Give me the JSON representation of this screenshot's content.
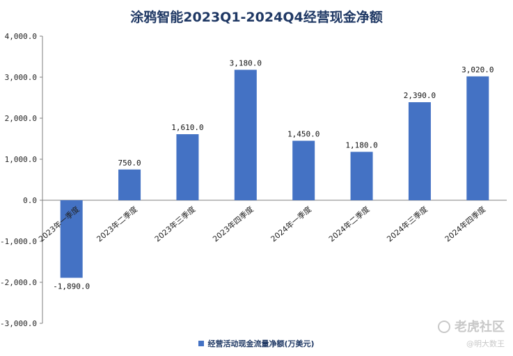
{
  "chart_data": {
    "type": "bar",
    "title": "涂鸦智能2023Q1-2024Q4经营现金净额",
    "categories": [
      "2023年一季度",
      "2023年二季度",
      "2023年三季度",
      "2023年四季度",
      "2024年一季度",
      "2024年二季度",
      "2024年三季度",
      "2024年四季度"
    ],
    "series": [
      {
        "name": "经营活动现金流量净额(万美元)",
        "values": [
          -1890,
          750,
          1610,
          3180,
          1450,
          1180,
          2390,
          3020
        ]
      }
    ],
    "data_labels": [
      "-1,890.0",
      "750.0",
      "1,610.0",
      "3,180.0",
      "1,450.0",
      "1,180.0",
      "2,390.0",
      "3,020.0"
    ],
    "yticks": [
      4000,
      3000,
      2000,
      1000,
      0,
      -1000,
      -2000,
      -3000
    ],
    "ytick_labels": [
      "4,000.0",
      "3,000.0",
      "2,000.0",
      "1,000.0",
      "0.0",
      "-1,000.0",
      "-2,000.0",
      "-3,000.0"
    ],
    "ylim": [
      -3000,
      4000
    ],
    "xlabel": "",
    "ylabel": "",
    "grid": false,
    "legend_position": "bottom",
    "bar_color": "#4472c4",
    "title_color": "#1f3864"
  },
  "watermark": {
    "logo_text": "老虎社区",
    "user": "@明大数王"
  }
}
